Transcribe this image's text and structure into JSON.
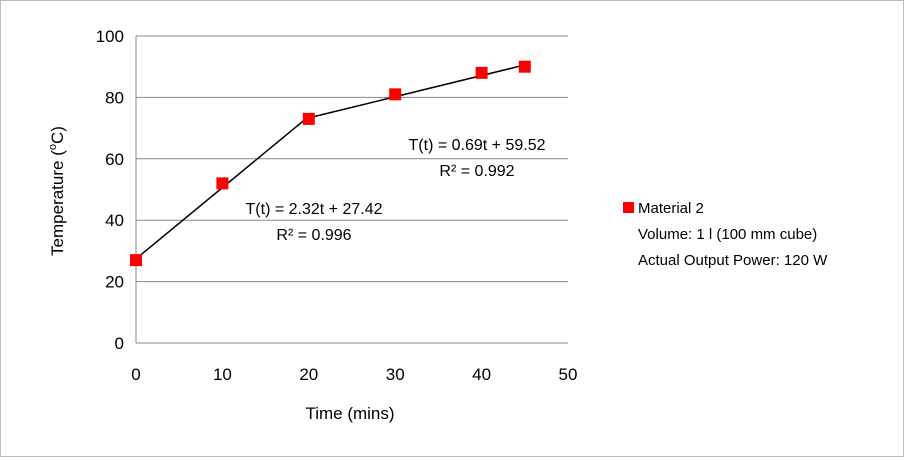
{
  "chart_data": {
    "type": "scatter",
    "xlabel": "Time (mins)",
    "ylabel_main": "Temperature (",
    "ylabel_sup": "o",
    "ylabel_end": "C)",
    "xlim": [
      0,
      50
    ],
    "ylim": [
      0,
      100
    ],
    "x_ticks": [
      0,
      10,
      20,
      30,
      40,
      50
    ],
    "y_ticks": [
      0,
      20,
      40,
      60,
      80,
      100
    ],
    "grid": "horizontal",
    "legend_position": "right",
    "series": [
      {
        "name": "Material 2",
        "color": "#ff0000",
        "marker": "square",
        "x": [
          0,
          10,
          20,
          30,
          40,
          45
        ],
        "y": [
          27,
          52,
          73,
          81,
          88,
          90
        ]
      }
    ],
    "trend_lines": [
      {
        "equation": "T(t) = 2.32t + 27.42",
        "r_squared": "R² = 0.996",
        "x_range": [
          0,
          20
        ],
        "slope": 2.32,
        "intercept": 27.42
      },
      {
        "equation": "T(t) = 0.69t + 59.52",
        "r_squared": "R² = 0.992",
        "x_range": [
          20,
          45
        ],
        "slope": 0.69,
        "intercept": 59.52
      }
    ],
    "legend_extra": [
      "Volume: 1 l (100 mm cube)",
      "Actual Output Power: 120 W"
    ],
    "line_color": "#000000",
    "grid_color": "#888888"
  }
}
